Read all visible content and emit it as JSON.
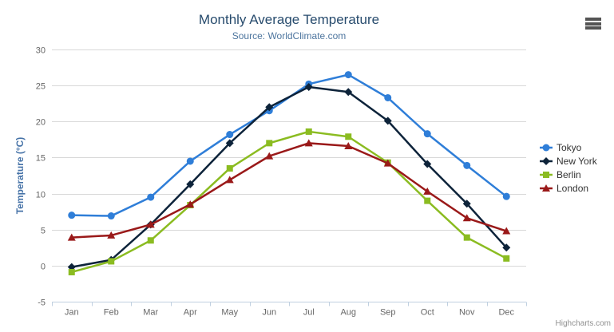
{
  "chart_data": {
    "type": "line",
    "title": "Monthly Average Temperature",
    "subtitle": "Source: WorldClimate.com",
    "categories": [
      "Jan",
      "Feb",
      "Mar",
      "Apr",
      "May",
      "Jun",
      "Jul",
      "Aug",
      "Sep",
      "Oct",
      "Nov",
      "Dec"
    ],
    "xlabel": "",
    "ylabel": "Temperature (°C)",
    "ylim": [
      -5,
      30
    ],
    "ytick_step": 5,
    "yticks": [
      -5,
      0,
      5,
      10,
      15,
      20,
      25,
      30
    ],
    "grid": true,
    "legend_position": "right",
    "series": [
      {
        "name": "Tokyo",
        "color": "#2f7ed8",
        "marker": "circle",
        "values": [
          7.0,
          6.9,
          9.5,
          14.5,
          18.2,
          21.5,
          25.2,
          26.5,
          23.3,
          18.3,
          13.9,
          9.6
        ]
      },
      {
        "name": "New York",
        "color": "#0d233a",
        "marker": "diamond",
        "values": [
          -0.2,
          0.8,
          5.7,
          11.3,
          17.0,
          22.0,
          24.8,
          24.1,
          20.1,
          14.1,
          8.6,
          2.5
        ]
      },
      {
        "name": "Berlin",
        "color": "#8bbc21",
        "marker": "square",
        "values": [
          -0.9,
          0.6,
          3.5,
          8.4,
          13.5,
          17.0,
          18.6,
          17.9,
          14.3,
          9.0,
          3.9,
          1.0
        ]
      },
      {
        "name": "London",
        "color": "#9a1919",
        "marker": "triangle",
        "values": [
          3.9,
          4.2,
          5.7,
          8.5,
          11.9,
          15.2,
          17.0,
          16.6,
          14.2,
          10.3,
          6.6,
          4.8
        ]
      }
    ],
    "style_colors": {
      "title": "#274b6d",
      "subtitle": "#4d759e",
      "y_axis_title": "#4572a7",
      "axis_labels": "#666666",
      "gridline": "#d8d8d8",
      "x_axis_line": "#c0d0e0",
      "legend_text": "#333333",
      "credit_text": "#909090",
      "export_icon": "#545454"
    },
    "credit": "Highcharts.com"
  },
  "icons": {
    "export_menu": "hamburger-icon"
  }
}
